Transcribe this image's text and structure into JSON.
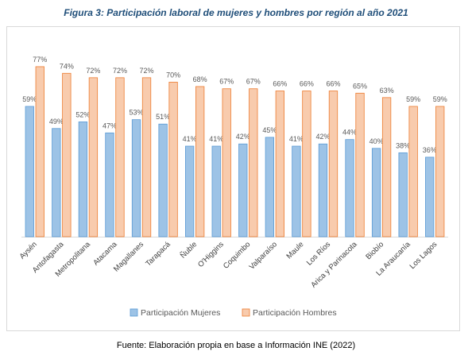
{
  "figure": {
    "title": "Figura 3: Participación laboral de mujeres y hombres por región al año 2021",
    "source": "Fuente: Elaboración propia en base a Información INE (2022)"
  },
  "chart_data": {
    "type": "bar",
    "categories": [
      "Aysén",
      "Antofagasta",
      "Metropolitana",
      "Atacama",
      "Magallanes",
      "Tarapacá",
      "Ñuble",
      "O'Higgins",
      "Coquimbo",
      "Valparaíso",
      "Maule",
      "Los Ríos",
      "Arica y Parinacota",
      "Biobío",
      "La Araucanía",
      "Los Lagos"
    ],
    "series": [
      {
        "name": "Participación Mujeres",
        "values": [
          59,
          49,
          52,
          47,
          53,
          51,
          41,
          41,
          42,
          45,
          41,
          42,
          44,
          40,
          38,
          36
        ],
        "color": "#9dc3e6",
        "stroke": "#5b9bd5"
      },
      {
        "name": "Participación Hombres",
        "values": [
          77,
          74,
          72,
          72,
          72,
          70,
          68,
          67,
          67,
          66,
          66,
          66,
          65,
          63,
          59,
          59
        ],
        "color": "#f8cbad",
        "stroke": "#ed7d31"
      }
    ],
    "value_suffix": "%",
    "ylim": [
      0,
      80
    ],
    "grid": false,
    "legend_position": "bottom"
  }
}
